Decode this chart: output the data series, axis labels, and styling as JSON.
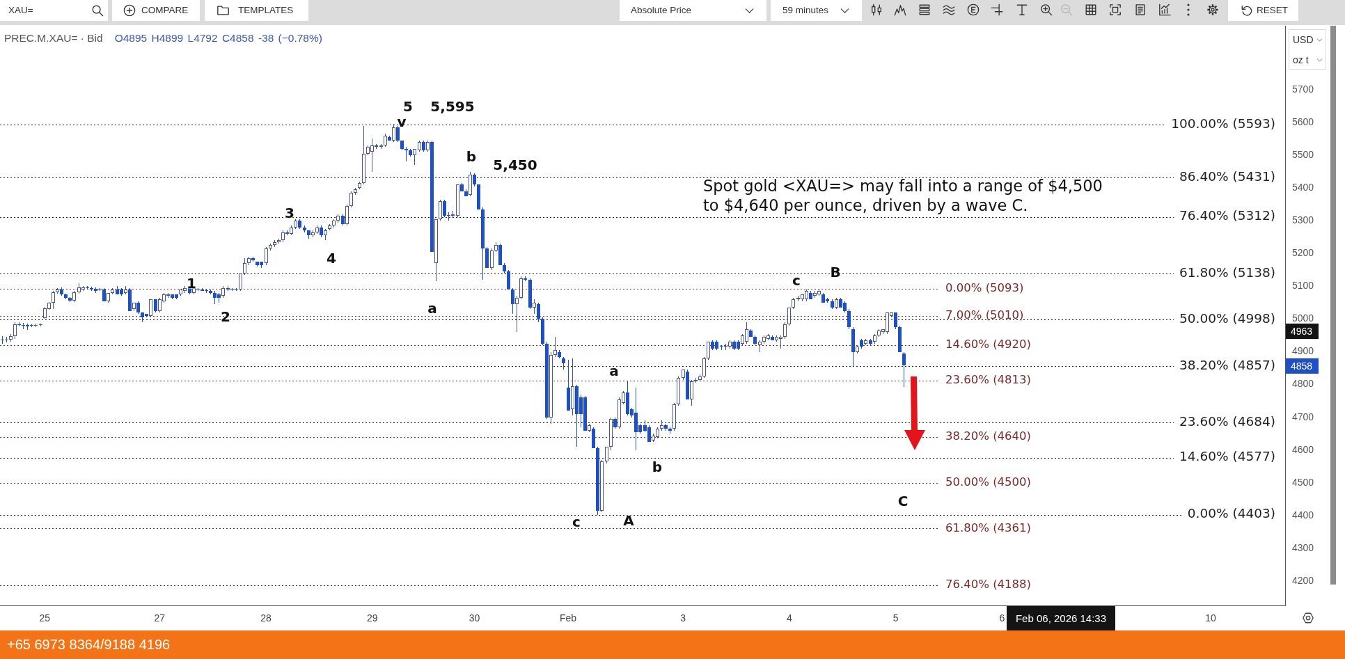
{
  "chart_data": {
    "type": "candlestick",
    "title": "PREC.M.XAU= · Bid",
    "subtitle": "O4895 H4899 L4792 C4858 -38 (−0.78%)",
    "categories": [
      null,
      null,
      null,
      null,
      null,
      null,
      null,
      null,
      null,
      null,
      "25",
      null,
      null,
      null,
      null,
      null,
      null,
      null,
      null,
      null,
      null,
      null,
      null,
      null,
      null,
      null,
      null,
      null,
      null,
      null,
      null,
      null,
      null,
      null,
      null,
      null,
      null,
      "27",
      null,
      null,
      null,
      null,
      null,
      null,
      null,
      null,
      null,
      null,
      null,
      null,
      null,
      null,
      null,
      null,
      null,
      null,
      null,
      null,
      null,
      null,
      null,
      null,
      "28",
      null,
      null,
      null,
      null,
      null,
      null,
      null,
      null,
      null,
      null,
      null,
      null,
      null,
      null,
      null,
      null,
      null,
      null,
      null,
      null,
      null,
      null,
      null,
      null,
      "29",
      null,
      null,
      null,
      null,
      null,
      null,
      null,
      null,
      null,
      null,
      null,
      null,
      null,
      null,
      null,
      null,
      null,
      null,
      null,
      null,
      null,
      null,
      null,
      "30",
      null,
      null,
      null,
      null,
      null,
      null,
      null,
      null,
      null,
      null,
      null,
      null,
      null,
      null,
      null,
      null,
      null,
      null,
      null,
      null,
      null,
      "Feb",
      null,
      null,
      null,
      null,
      null,
      null,
      null,
      null,
      null,
      null,
      null,
      null,
      null,
      null,
      null,
      null,
      null,
      null,
      null,
      null,
      null,
      null,
      null,
      null,
      null,
      null,
      "3",
      null,
      null,
      null,
      null,
      null,
      null,
      null,
      null,
      null,
      null,
      null,
      null,
      null,
      null,
      null,
      null,
      null,
      null,
      null,
      null,
      null,
      null,
      null,
      null,
      "4",
      null,
      null,
      null,
      null,
      null,
      null,
      null,
      null,
      null,
      null,
      null,
      null,
      null,
      null,
      null,
      null,
      null,
      null,
      null,
      null,
      null,
      null,
      null,
      null,
      "5",
      null,
      null,
      null,
      null,
      null,
      null,
      null,
      null,
      null,
      null,
      null,
      null,
      null,
      null,
      null,
      null,
      null,
      null,
      null,
      null,
      null,
      null,
      null,
      null,
      "6",
      null,
      null,
      null,
      null,
      null,
      null,
      null,
      null,
      null,
      null,
      null,
      null,
      null,
      null,
      null,
      null,
      null,
      null,
      null,
      null,
      null,
      null,
      null,
      null,
      null,
      null,
      null,
      null,
      null,
      null,
      null,
      null,
      null,
      null,
      null,
      null,
      null,
      null,
      null,
      null,
      null,
      null,
      null,
      null,
      null,
      null,
      null,
      null,
      "10",
      null,
      null,
      null,
      null,
      null,
      null,
      null,
      null,
      null,
      null,
      null,
      null,
      null,
      null,
      null,
      null,
      null
    ],
    "ohlc": [
      [
        4937,
        4948,
        4925,
        4935
      ],
      [
        4935,
        4945,
        4928,
        4937
      ],
      [
        4937,
        4955,
        4930,
        4948
      ],
      [
        4948,
        4990,
        4940,
        4984
      ],
      [
        4984,
        4990,
        4978,
        4982
      ],
      [
        4982,
        4988,
        4970,
        4980
      ],
      [
        4982,
        4986,
        4966,
        4978
      ],
      [
        4980,
        4985,
        4975,
        4979
      ],
      [
        4980,
        4986,
        4976,
        4981
      ],
      [
        4982,
        4986,
        4978,
        4983
      ],
      [
        5004,
        5036,
        5000,
        5032
      ],
      [
        5030,
        5052,
        5028,
        5049
      ],
      [
        5049,
        5086,
        5030,
        5082
      ],
      [
        5082,
        5095,
        5078,
        5090
      ],
      [
        5090,
        5096,
        5070,
        5075
      ],
      [
        5075,
        5078,
        5060,
        5064
      ],
      [
        5064,
        5066,
        5052,
        5057
      ],
      [
        5057,
        5086,
        5052,
        5082
      ],
      [
        5082,
        5110,
        5078,
        5096
      ],
      [
        5090,
        5100,
        5086,
        5096
      ],
      [
        5095,
        5100,
        5090,
        5094
      ],
      [
        5095,
        5098,
        5085,
        5090
      ],
      [
        5093,
        5096,
        5080,
        5085
      ],
      [
        5090,
        5095,
        5085,
        5090
      ],
      [
        5090,
        5095,
        5055,
        5055
      ],
      [
        5055,
        5080,
        5050,
        5080
      ],
      [
        5080,
        5095,
        5075,
        5090
      ],
      [
        5090,
        5100,
        5075,
        5075
      ],
      [
        5090,
        5095,
        5070,
        5075
      ],
      [
        5080,
        5100,
        5075,
        5090
      ],
      [
        5090,
        5095,
        5025,
        5025
      ],
      [
        5030,
        5050,
        5025,
        5050
      ],
      [
        5050,
        5055,
        5015,
        5020
      ],
      [
        5020,
        5020,
        4990,
        5005
      ],
      [
        5015,
        5015,
        5005,
        5010
      ],
      [
        5010,
        5060,
        5005,
        5060
      ],
      [
        5060,
        5060,
        5020,
        5025
      ],
      [
        5025,
        5065,
        5020,
        5060
      ],
      [
        5055,
        5080,
        5050,
        5075
      ],
      [
        5070,
        5080,
        5065,
        5075
      ],
      [
        5075,
        5075,
        5060,
        5065
      ],
      [
        5075,
        5075,
        5060,
        5065
      ],
      [
        5075,
        5090,
        5070,
        5090
      ],
      [
        5085,
        5100,
        5080,
        5095
      ],
      [
        5095,
        5100,
        5075,
        5080
      ],
      [
        5080,
        5095,
        5075,
        5095
      ],
      [
        5090,
        5095,
        5085,
        5090
      ],
      [
        5090,
        5095,
        5085,
        5085
      ],
      [
        5085,
        5090,
        5080,
        5085
      ],
      [
        5085,
        5090,
        5075,
        5080
      ],
      [
        5080,
        5085,
        5045,
        5065
      ],
      [
        5075,
        5080,
        5050,
        5065
      ],
      [
        5070,
        5100,
        5065,
        5095
      ],
      [
        5095,
        5100,
        5085,
        5090
      ],
      [
        5090,
        5095,
        5085,
        5090
      ],
      [
        5090,
        5095,
        5085,
        5090
      ],
      [
        5090,
        5140,
        5085,
        5140
      ],
      [
        5140,
        5185,
        5135,
        5170
      ],
      [
        5170,
        5190,
        5165,
        5185
      ],
      [
        5185,
        5190,
        5175,
        5180
      ],
      [
        5175,
        5175,
        5160,
        5165
      ],
      [
        5175,
        5175,
        5155,
        5165
      ],
      [
        5170,
        5220,
        5165,
        5215
      ],
      [
        5215,
        5230,
        5210,
        5225
      ],
      [
        5225,
        5240,
        5220,
        5235
      ],
      [
        5235,
        5245,
        5230,
        5240
      ],
      [
        5240,
        5270,
        5235,
        5265
      ],
      [
        5265,
        5270,
        5255,
        5260
      ],
      [
        5260,
        5285,
        5255,
        5280
      ],
      [
        5280,
        5305,
        5275,
        5300
      ],
      [
        5300,
        5305,
        5275,
        5280
      ],
      [
        5280,
        5285,
        5265,
        5270
      ],
      [
        5270,
        5270,
        5245,
        5255
      ],
      [
        5255,
        5270,
        5250,
        5265
      ],
      [
        5265,
        5285,
        5260,
        5280
      ],
      [
        5280,
        5285,
        5250,
        5255
      ],
      [
        5255,
        5275,
        5240,
        5270
      ],
      [
        5275,
        5290,
        5270,
        5285
      ],
      [
        5285,
        5305,
        5280,
        5300
      ],
      [
        5300,
        5320,
        5295,
        5315
      ],
      [
        5315,
        5320,
        5285,
        5290
      ],
      [
        5290,
        5350,
        5285,
        5345
      ],
      [
        5345,
        5390,
        5340,
        5385
      ],
      [
        5385,
        5400,
        5380,
        5395
      ],
      [
        5400,
        5420,
        5395,
        5415
      ],
      [
        5415,
        5590,
        5410,
        5505
      ],
      [
        5505,
        5530,
        5500,
        5525
      ],
      [
        5510,
        5550,
        5450,
        5530
      ],
      [
        5530,
        5535,
        5520,
        5525
      ],
      [
        5525,
        5535,
        5520,
        5530
      ],
      [
        5530,
        5565,
        5525,
        5560
      ],
      [
        5555,
        5560,
        5545,
        5545
      ],
      [
        5545,
        5595,
        5540,
        5585
      ],
      [
        5585,
        5590,
        5540,
        5545
      ],
      [
        5545,
        5545,
        5515,
        5520
      ],
      [
        5520,
        5525,
        5480,
        5515
      ],
      [
        5515,
        5520,
        5495,
        5500
      ],
      [
        5500,
        5520,
        5470,
        5520
      ],
      [
        5515,
        5545,
        5510,
        5540
      ],
      [
        5540,
        5545,
        5510,
        5515
      ],
      [
        5515,
        5545,
        5510,
        5540
      ],
      [
        5540,
        5545,
        5205,
        5205
      ],
      [
        5170,
        5305,
        5115,
        5305
      ],
      [
        5305,
        5365,
        5300,
        5360
      ],
      [
        5360,
        5365,
        5310,
        5315
      ],
      [
        5315,
        5325,
        5300,
        5315
      ],
      [
        5315,
        5330,
        5310,
        5320
      ],
      [
        5315,
        5410,
        5310,
        5410
      ],
      [
        5410,
        5415,
        5390,
        5390
      ],
      [
        5390,
        5395,
        5375,
        5375
      ],
      [
        5380,
        5450,
        5375,
        5440
      ],
      [
        5440,
        5445,
        5405,
        5410
      ],
      [
        5410,
        5410,
        5335,
        5335
      ],
      [
        5335,
        5340,
        5120,
        5215
      ],
      [
        5215,
        5220,
        5155,
        5155
      ],
      [
        5155,
        5215,
        5150,
        5210
      ],
      [
        5210,
        5235,
        5205,
        5225
      ],
      [
        5225,
        5230,
        5165,
        5165
      ],
      [
        5165,
        5170,
        5140,
        5145
      ],
      [
        5145,
        5150,
        5090,
        5090
      ],
      [
        5090,
        5095,
        5015,
        5045
      ],
      [
        5045,
        5070,
        4960,
        5065
      ],
      [
        5065,
        5130,
        5060,
        5125
      ],
      [
        5125,
        5130,
        5115,
        5120
      ],
      [
        5120,
        5125,
        5030,
        5035
      ],
      [
        5035,
        5060,
        5015,
        5050
      ],
      [
        5045,
        5050,
        4990,
        5000
      ],
      [
        5000,
        5005,
        4920,
        4925
      ],
      [
        4925,
        4930,
        4695,
        4700
      ],
      [
        4700,
        4900,
        4680,
        4890
      ],
      [
        4890,
        4945,
        4885,
        4905
      ],
      [
        4900,
        4905,
        4880,
        4885
      ],
      [
        4880,
        4885,
        4845,
        4865
      ],
      [
        4790,
        4875,
        4720,
        4720
      ],
      [
        4725,
        4880,
        4705,
        4795
      ],
      [
        4795,
        4800,
        4610,
        4710
      ],
      [
        4760,
        4770,
        4670,
        4710
      ],
      [
        4760,
        4765,
        4660,
        4660
      ],
      [
        4660,
        4680,
        4655,
        4675
      ],
      [
        4665,
        4670,
        4605,
        4605
      ],
      [
        4605,
        4610,
        4403,
        4415
      ],
      [
        4415,
        4570,
        4410,
        4565
      ],
      [
        4565,
        4610,
        4560,
        4610
      ],
      [
        4610,
        4700,
        4600,
        4695
      ],
      [
        4695,
        4700,
        4665,
        4670
      ],
      [
        4670,
        4760,
        4665,
        4755
      ],
      [
        4745,
        4780,
        4740,
        4775
      ],
      [
        4775,
        4810,
        4705,
        4710
      ],
      [
        4725,
        4730,
        4700,
        4705
      ],
      [
        4715,
        4790,
        4600,
        4655
      ],
      [
        4675,
        4680,
        4650,
        4655
      ],
      [
        4675,
        4690,
        4655,
        4660
      ],
      [
        4670,
        4675,
        4625,
        4625
      ],
      [
        4630,
        4650,
        4625,
        4645
      ],
      [
        4640,
        4670,
        4635,
        4665
      ],
      [
        4665,
        4690,
        4660,
        4675
      ],
      [
        4675,
        4680,
        4660,
        4665
      ],
      [
        4665,
        4670,
        4650,
        4660
      ],
      [
        4665,
        4745,
        4660,
        4740
      ],
      [
        4740,
        4825,
        4735,
        4820
      ],
      [
        4820,
        4845,
        4815,
        4845
      ],
      [
        4840,
        4845,
        4755,
        4755
      ],
      [
        4755,
        4815,
        4735,
        4810
      ],
      [
        4810,
        4820,
        4805,
        4815
      ],
      [
        4815,
        4830,
        4810,
        4825
      ],
      [
        4825,
        4885,
        4820,
        4880
      ],
      [
        4880,
        4930,
        4875,
        4930
      ],
      [
        4930,
        4935,
        4905,
        4910
      ],
      [
        4930,
        4935,
        4905,
        4910
      ],
      [
        4915,
        4920,
        4905,
        4915
      ],
      [
        4915,
        4925,
        4905,
        4915
      ],
      [
        4915,
        4935,
        4910,
        4930
      ],
      [
        4930,
        4935,
        4905,
        4910
      ],
      [
        4930,
        4935,
        4905,
        4910
      ],
      [
        4925,
        4955,
        4920,
        4950
      ],
      [
        4930,
        4990,
        4925,
        4970
      ],
      [
        4965,
        4970,
        4945,
        4945
      ],
      [
        4945,
        4950,
        4920,
        4925
      ],
      [
        4920,
        4935,
        4900,
        4930
      ],
      [
        4930,
        4950,
        4925,
        4945
      ],
      [
        4940,
        4955,
        4935,
        4950
      ],
      [
        4945,
        4950,
        4935,
        4935
      ],
      [
        4935,
        4950,
        4930,
        4945
      ],
      [
        4940,
        4950,
        4910,
        4945
      ],
      [
        4945,
        4990,
        4940,
        4985
      ],
      [
        4985,
        5035,
        4980,
        5035
      ],
      [
        5035,
        5065,
        5030,
        5060
      ],
      [
        5060,
        5070,
        5055,
        5065
      ],
      [
        5060,
        5075,
        5055,
        5075
      ],
      [
        5060,
        5090,
        5055,
        5085
      ],
      [
        5080,
        5085,
        5060,
        5060
      ],
      [
        5070,
        5085,
        5065,
        5080
      ],
      [
        5075,
        5093,
        5070,
        5085
      ],
      [
        5075,
        5080,
        5050,
        5050
      ],
      [
        5060,
        5065,
        5050,
        5055
      ],
      [
        5055,
        5060,
        5030,
        5035
      ],
      [
        5035,
        5065,
        5030,
        5060
      ],
      [
        5060,
        5065,
        5035,
        5035
      ],
      [
        5050,
        5055,
        5020,
        5025
      ],
      [
        5025,
        5030,
        4970,
        4975
      ],
      [
        4970,
        4975,
        4855,
        4900
      ],
      [
        4900,
        4920,
        4895,
        4915
      ],
      [
        4935,
        4940,
        4910,
        4915
      ],
      [
        4925,
        4940,
        4920,
        4935
      ],
      [
        4935,
        4940,
        4920,
        4925
      ],
      [
        4930,
        4955,
        4925,
        4950
      ],
      [
        4950,
        4970,
        4945,
        4965
      ],
      [
        4960,
        4970,
        4955,
        4970
      ],
      [
        4960,
        5020,
        4955,
        5020
      ],
      [
        5010,
        5020,
        5005,
        5020
      ],
      [
        5020,
        5020,
        4970,
        4975
      ],
      [
        4975,
        4980,
        4900,
        4900
      ],
      [
        4895,
        4899,
        4792,
        4858
      ],
      null,
      null,
      null,
      null,
      null,
      null,
      null,
      null,
      null,
      null,
      null,
      null,
      null,
      null,
      null,
      null,
      null,
      null,
      null,
      null,
      null,
      null,
      null,
      null,
      null,
      null,
      null,
      null,
      null,
      null,
      null,
      null,
      null,
      null,
      null,
      null,
      null,
      null,
      null,
      null,
      null,
      null,
      null,
      null,
      null,
      null,
      null,
      null,
      null,
      null,
      null,
      null,
      null,
      null,
      null,
      null,
      null,
      null,
      null,
      null,
      null,
      null,
      null,
      null,
      null,
      null,
      null,
      null,
      null,
      null,
      null,
      null,
      null,
      null,
      null,
      null,
      null,
      null,
      null,
      null,
      null,
      null,
      null,
      null,
      null,
      null,
      null,
      null,
      null
    ],
    "colors": [
      "#1f4fc4",
      "#4a5690",
      "#4a5690",
      "#4a5690",
      "#1f4fc4",
      "#1f4fc4",
      "#1f4fc4",
      "#1f4fc4",
      "#4a5690",
      "#4a5690",
      "#4a5690",
      "#4a5690",
      "#4a5690",
      "#4a5690",
      "#1f4fc4",
      "#1f4fc4",
      "#1f4fc4",
      "#4a5690",
      "#4a5690",
      "#4a5690",
      "#1f4fc4",
      "#1f4fc4",
      "#1f4fc4",
      "#1f4fc4",
      "#1f4fc4",
      "#4a5690",
      "#4a5690",
      "#1f4fc4",
      "#1f4fc4",
      "#4a5690",
      "#1f4fc4",
      "#4a5690",
      "#1f4fc4",
      "#1f4fc4",
      "#1f4fc4",
      "#4a5690",
      "#1f4fc4",
      "#4a5690",
      "#4a5690",
      "#4a5690",
      "#1f4fc4",
      "#1f4fc4",
      "#4a5690",
      "#4a5690",
      "#1f4fc4",
      "#4a5690",
      "#1f4fc4",
      "#1f4fc4",
      "#1f4fc4",
      "#1f4fc4",
      "#1f4fc4",
      "#1f4fc4",
      "#4a5690",
      "#1f4fc4",
      "#1f4fc4",
      "#1f4fc4",
      "#4a5690",
      "#4a5690",
      "#4a5690",
      "#1f4fc4",
      "#1f4fc4",
      "#1f4fc4",
      "#4a5690",
      "#4a5690",
      "#4a5690",
      "#4a5690",
      "#4a5690",
      "#1f4fc4",
      "#4a5690",
      "#4a5690",
      "#1f4fc4",
      "#1f4fc4",
      "#1f4fc4",
      "#4a5690",
      "#4a5690",
      "#1f4fc4",
      "#4a5690",
      "#4a5690",
      "#4a5690",
      "#4a5690",
      "#1f4fc4",
      "#4a5690",
      "#4a5690",
      "#4a5690",
      "#4a5690",
      "#4a5690",
      "#4a5690",
      "#4a5690",
      "#1f4fc4",
      "#4a5690",
      "#4a5690",
      "#1f4fc4",
      "#4a5690",
      "#1f4fc4",
      "#1f4fc4",
      "#1f4fc4",
      "#1f4fc4",
      "#4a5690",
      "#4a5690",
      "#1f4fc4",
      "#4a5690",
      "#1f4fc4",
      "#4a5690",
      "#4a5690",
      "#1f4fc4",
      "#1f4fc4",
      "#4a5690",
      "#4a5690",
      "#1f4fc4",
      "#1f4fc4",
      "#4a5690",
      "#1f4fc4",
      "#1f4fc4",
      "#1f4fc4",
      "#1f4fc4",
      "#4a5690",
      "#4a5690",
      "#1f4fc4",
      "#1f4fc4",
      "#1f4fc4",
      "#1f4fc4",
      "#4a5690",
      "#4a5690",
      "#1f4fc4",
      "#1f4fc4",
      "#4a5690",
      "#1f4fc4",
      "#1f4fc4",
      "#1f4fc4",
      "#4a5690",
      "#4a5690",
      "#1f4fc4",
      "#1f4fc4",
      "#1f4fc4",
      "#4a5690",
      "#1f4fc4",
      "#1f4fc4",
      "#1f4fc4",
      "#4a5690",
      "#1f4fc4",
      "#1f4fc4",
      "#4a5690",
      "#4a5690",
      "#4a5690",
      "#1f4fc4",
      "#4a5690",
      "#4a5690",
      "#1f4fc4",
      "#1f4fc4",
      "#1f4fc4",
      "#1f4fc4",
      "#1f4fc4",
      "#1f4fc4",
      "#4a5690",
      "#4a5690",
      "#4a5690",
      "#1f4fc4",
      "#1f4fc4",
      "#4a5690",
      "#4a5690",
      "#4a5690",
      "#1f4fc4",
      "#4a5690",
      "#4a5690",
      "#4a5690",
      "#4a5690",
      "#4a5690",
      "#1f4fc4",
      "#1f4fc4",
      "#1f4fc4",
      "#1f4fc4",
      "#4a5690",
      "#1f4fc4",
      "#1f4fc4",
      "#4a5690",
      "#4a5690",
      "#1f4fc4",
      "#1f4fc4",
      "#4a5690",
      "#4a5690",
      "#4a5690",
      "#1f4fc4",
      "#4a5690",
      "#4a5690",
      "#4a5690",
      "#4a5690",
      "#4a5690",
      "#4a5690",
      "#4a5690",
      "#4a5690",
      "#1f4fc4",
      "#4a5690",
      "#4a5690",
      "#1f4fc4",
      "#1f4fc4",
      "#1f4fc4",
      "#4a5690",
      "#1f4fc4",
      "#1f4fc4",
      "#1f4fc4",
      "#1f4fc4",
      "#4a5690",
      "#1f4fc4",
      "#4a5690",
      "#1f4fc4",
      "#4a5690",
      "#4a5690",
      "#4a5690",
      "#4a5690",
      "#4a5690",
      "#1f4fc4",
      "#1f4fc4",
      "#1f4fc4",
      null,
      null,
      null,
      null,
      null,
      null,
      null,
      null,
      null,
      null,
      null,
      null,
      null,
      null,
      null,
      null,
      null,
      null,
      null,
      null,
      null,
      null,
      null,
      null,
      null,
      null,
      null,
      null,
      null,
      null,
      null,
      null,
      null,
      null,
      null,
      null,
      null,
      null,
      null,
      null,
      null,
      null,
      null,
      null,
      null,
      null,
      null,
      null,
      null,
      null,
      null,
      null,
      null,
      null,
      null,
      null,
      null,
      null,
      null,
      null,
      null,
      null,
      null,
      null,
      null,
      null,
      null,
      null,
      null,
      null,
      null,
      null,
      null,
      null,
      null,
      null,
      null,
      null,
      null,
      null,
      null,
      null,
      null,
      null,
      null,
      null,
      null,
      null,
      null
    ],
    "ylim": [
      4126,
      5895
    ],
    "yticks": [
      4200,
      4300,
      4400,
      4500,
      4600,
      4700,
      4800,
      4900,
      5000,
      5100,
      5200,
      5300,
      5400,
      5500,
      5600,
      5700
    ],
    "ref_lines": [
      {
        "axis": "y",
        "value": 5593,
        "label": "100.00% (5593)",
        "color": "#222222",
        "line_style": "dotted"
      },
      {
        "axis": "y",
        "value": 5431,
        "label": "86.40% (5431)",
        "color": "#222222",
        "line_style": "dotted"
      },
      {
        "axis": "y",
        "value": 5312,
        "label": "76.40% (5312)",
        "color": "#222222",
        "line_style": "dotted"
      },
      {
        "axis": "y",
        "value": 5138,
        "label": "61.80% (5138)",
        "color": "#222222",
        "line_style": "dotted"
      },
      {
        "axis": "y",
        "value": 4998,
        "label": "50.00% (4998)",
        "color": "#222222",
        "line_style": "dotted"
      },
      {
        "axis": "y",
        "value": 4857,
        "label": "38.20% (4857)",
        "color": "#222222",
        "line_style": "dotted"
      },
      {
        "axis": "y",
        "value": 4684,
        "label": "23.60% (4684)",
        "color": "#222222",
        "line_style": "dotted"
      },
      {
        "axis": "y",
        "value": 4577,
        "label": "14.60% (4577)",
        "color": "#222222",
        "line_style": "dotted"
      },
      {
        "axis": "y",
        "value": 4403,
        "label": "0.00% (4403)",
        "color": "#222222",
        "line_style": "dotted"
      },
      {
        "axis": "y",
        "value": 5093,
        "label": "0.00% (5093)",
        "color": "#7a2b2b",
        "line_style": "dotted"
      },
      {
        "axis": "y",
        "value": 5010,
        "label": "7.00% (5010)",
        "color": "#7a2b2b",
        "line_style": "dotted"
      },
      {
        "axis": "y",
        "value": 4920,
        "label": "14.60% (4920)",
        "color": "#7a2b2b",
        "line_style": "dotted"
      },
      {
        "axis": "y",
        "value": 4813,
        "label": "23.60% (4813)",
        "color": "#7a2b2b",
        "line_style": "dotted"
      },
      {
        "axis": "y",
        "value": 4640,
        "label": "38.20% (4640)",
        "color": "#7a2b2b",
        "line_style": "dotted"
      },
      {
        "axis": "y",
        "value": 4500,
        "label": "50.00% (4500)",
        "color": "#7a2b2b",
        "line_style": "dotted"
      },
      {
        "axis": "y",
        "value": 4361,
        "label": "61.80% (4361)",
        "color": "#7a2b2b",
        "line_style": "dotted"
      },
      {
        "axis": "y",
        "value": 4188,
        "label": "76.40% (4188)",
        "color": "#7a2b2b",
        "line_style": "dotted"
      }
    ],
    "annotations": [
      "Spot gold <XAU=> may fall into a range of $4,500 to $4,640 per ounce, driven by a wave C.",
      "5",
      "v",
      "5,595",
      "b",
      "5,450",
      "3",
      "4",
      "1",
      "2",
      "a",
      "c",
      "A",
      "a",
      "b",
      "c",
      "B",
      "C",
      "4963",
      "4858",
      "Feb 06, 2026 14:33",
      "XAU=",
      "COMPARE",
      "TEMPLATES",
      "Absolute Price",
      "59 minutes",
      "RESET",
      "USD",
      "oz t",
      "+65 6973 8364/9188 4196"
    ]
  }
}
